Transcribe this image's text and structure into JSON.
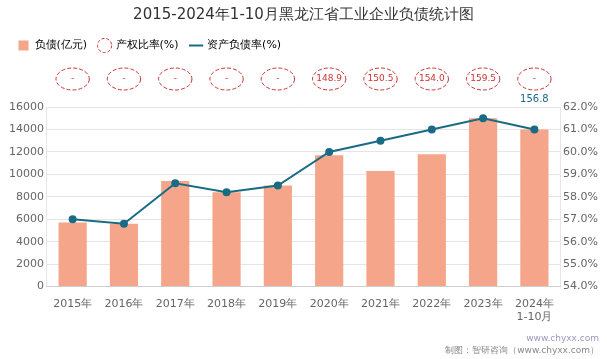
{
  "chart_data": {
    "type": "bar",
    "title": "2015-2024年1-10月黑龙江省工业企业负债统计图",
    "categories": [
      "2015年",
      "2016年",
      "2017年",
      "2018年",
      "2019年",
      "2020年",
      "2021年",
      "2022年",
      "2023年",
      "2024年"
    ],
    "series": [
      {
        "name": "负债(亿元)",
        "type": "bar",
        "color": "#F5A68A",
        "values": [
          5700,
          5600,
          9400,
          8400,
          9000,
          11700,
          10300,
          11800,
          15000,
          14000
        ]
      },
      {
        "name": "产权比率(%)",
        "type": "label",
        "color": "#CC3333",
        "marker": "circle",
        "line_style": "dashed",
        "values": [
          null,
          null,
          null,
          null,
          null,
          148.9,
          150.5,
          154.0,
          159.5,
          null
        ],
        "value_labels": [
          "-",
          "-",
          "-",
          "-",
          "-",
          "148.9",
          "150.5",
          "154.0",
          "159.5",
          "-"
        ]
      },
      {
        "name": "资产负债率(%)",
        "type": "line",
        "color": "#1A6B85",
        "marker": "circle",
        "axis": "y2",
        "values": [
          57.0,
          56.8,
          58.6,
          58.2,
          58.5,
          60.0,
          60.5,
          61.0,
          61.5,
          61.0
        ]
      }
    ],
    "ylim": [
      0,
      16000
    ],
    "yticks": [
      0,
      2000,
      4000,
      6000,
      8000,
      10000,
      12000,
      14000,
      16000
    ],
    "y2lim": [
      54.0,
      62.0
    ],
    "y2ticks": [
      {
        "value": 54.0,
        "label": "54.0%"
      },
      {
        "value": 55.0,
        "label": "55.0%"
      },
      {
        "value": 56.0,
        "label": "56.0%"
      },
      {
        "value": 57.0,
        "label": "57.0%"
      },
      {
        "value": 58.0,
        "label": "58.0%"
      },
      {
        "value": 59.0,
        "label": "59.0%"
      },
      {
        "value": 60.0,
        "label": "60.0%"
      },
      {
        "value": 61.0,
        "label": "61.0%"
      },
      {
        "value": 62.0,
        "label": "62.0%"
      }
    ],
    "grid": true,
    "legend": "upper left",
    "annotations": [
      {
        "text": "156.8",
        "x": "2024年",
        "y": 62.0,
        "axis": "y2",
        "color": "#1A6B85"
      },
      {
        "text": "1-10月",
        "x": "2024年"
      },
      {
        "text": "www.chyxx.com"
      },
      {
        "text": "制图：智研咨询（www.chyxx.com）"
      }
    ]
  }
}
